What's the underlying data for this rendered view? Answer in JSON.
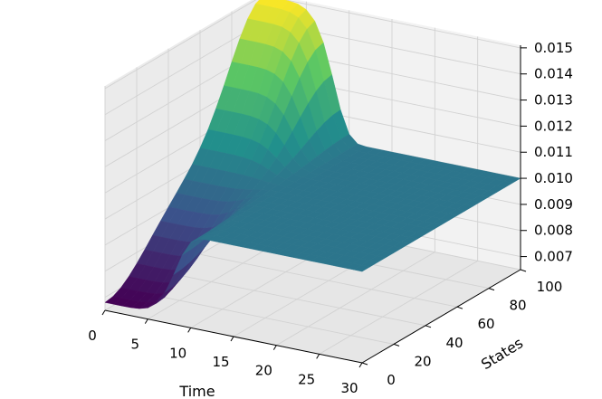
{
  "chart_data": {
    "type": "surface-3d",
    "title": "",
    "xlabel": "Time",
    "ylabel": "States",
    "zlabel": "",
    "xlim": [
      0,
      30
    ],
    "ylim": [
      0,
      100
    ],
    "zlim": [
      0.0065,
      0.0151
    ],
    "x_ticks": [
      "0",
      "5",
      "10",
      "15",
      "20",
      "25",
      "30"
    ],
    "y_ticks": [
      "0",
      "20",
      "40",
      "60",
      "80",
      "100"
    ],
    "z_ticks": [
      "0.007",
      "0.008",
      "0.009",
      "0.010",
      "0.011",
      "0.012",
      "0.013",
      "0.014",
      "0.015"
    ],
    "grid": true,
    "colormap": "viridis",
    "colormap_stops": [
      "#440154",
      "#3b528b",
      "#21918c",
      "#5ec962",
      "#fde725"
    ],
    "baseline_value": 0.01,
    "surface": {
      "time_bands": [
        {
          "time_start": 0,
          "time_end": 12,
          "description": "low-state dip",
          "states_range": [
            0,
            50
          ],
          "min_value": 0.0068
        },
        {
          "time_start": 0,
          "time_end": 12,
          "description": "high-state peak",
          "states_range": [
            50,
            100
          ],
          "max_value": 0.015
        },
        {
          "time_start": 12,
          "time_end": 30,
          "description": "flat",
          "value": 0.01
        }
      ]
    }
  }
}
